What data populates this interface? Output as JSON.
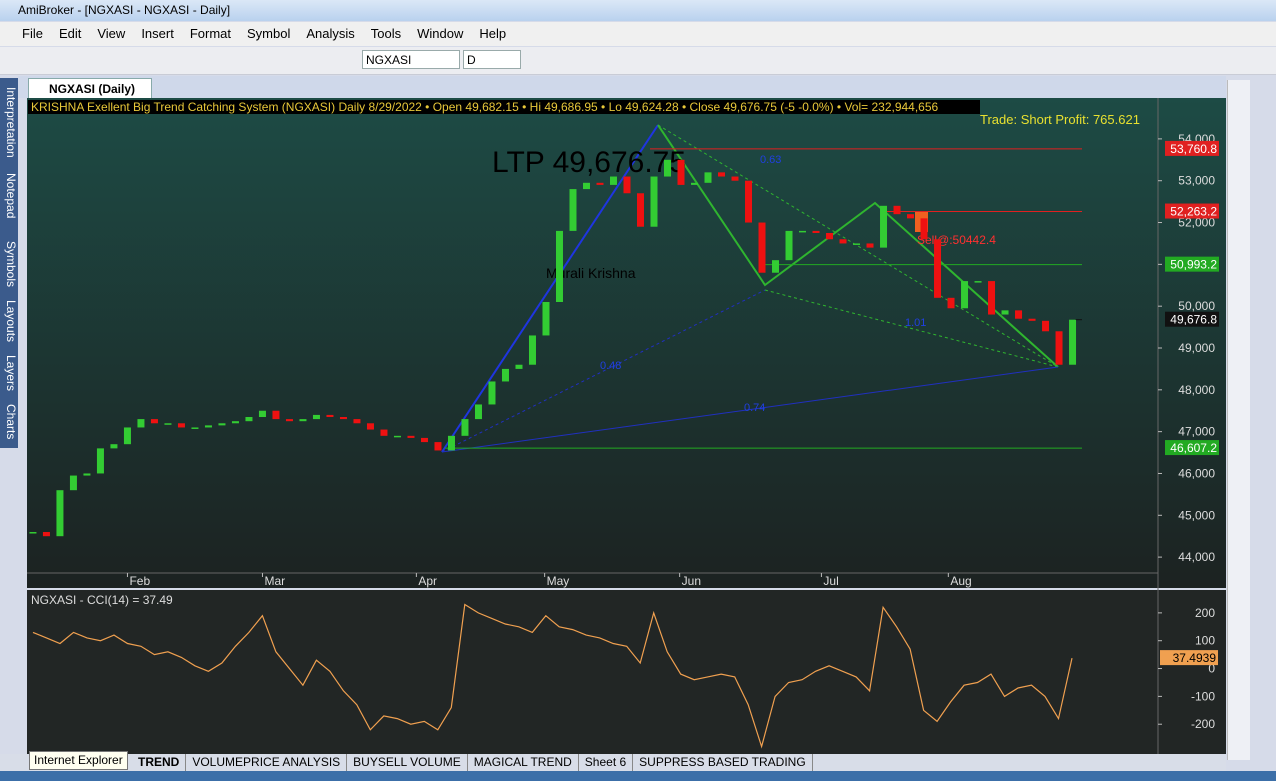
{
  "window": {
    "title": "AmiBroker - [NGXASI - NGXASI - Daily]",
    "menu": [
      "File",
      "Edit",
      "View",
      "Insert",
      "Format",
      "Symbol",
      "Analysis",
      "Tools",
      "Window",
      "Help"
    ]
  },
  "toolbar": {
    "symbol": "NGXASI",
    "interval": "D"
  },
  "side_tabs": [
    "Interpretation",
    "Notepad",
    "Symbols",
    "Layouts",
    "Layers",
    "Charts"
  ],
  "chart_tab": "NGXASI (Daily)",
  "sheets": [
    "TREND",
    "VOLUMEPRICE ANALYSIS",
    "BUYSELL VOLUME",
    "MAGICAL TREND",
    "Sheet 6",
    "SUPPRESS BASED TRADING"
  ],
  "tooltip": "Internet Explorer",
  "chart_data": [
    {
      "type": "candlestick",
      "title": "KRISHNA Exellent Big Trend Catching System (NGXASI) Daily  8/29/2022  •  Open 49,682.15  •  Hi 49,686.95  •  Lo 49,624.28  •  Close 49,676.75 (-5 -0.0%)  •  Vol= 232,944,656",
      "annotations": [
        "Trade: Short Profit:  765.621",
        "LTP 49,676.75",
        "Murali Krishna",
        "Sell@:50442.4",
        "0.63",
        "0.48",
        "0.74",
        "1.01"
      ],
      "x": [
        0,
        1,
        2,
        3,
        4,
        5,
        6,
        7,
        8,
        9,
        10,
        11,
        12,
        13,
        14,
        15,
        16,
        17,
        18,
        19,
        20,
        21,
        22,
        23,
        24,
        25,
        26,
        27,
        28,
        29,
        30,
        31,
        32,
        33,
        34,
        35,
        36,
        37,
        38,
        39,
        40,
        41,
        42,
        43,
        44,
        45,
        46,
        47,
        48,
        49,
        50,
        51,
        52,
        53,
        54,
        55,
        56,
        57,
        58,
        59,
        60,
        61,
        62,
        63,
        64,
        65,
        66,
        67,
        68,
        69,
        70,
        71,
        72,
        73,
        74,
        75,
        76,
        77
      ],
      "values": [
        44600,
        44500,
        45600,
        45950,
        46000,
        46600,
        46700,
        47100,
        47300,
        47200,
        47200,
        47100,
        47100,
        47150,
        47200,
        47250,
        47350,
        47500,
        47300,
        47250,
        47300,
        47400,
        47350,
        47300,
        47200,
        47050,
        46900,
        46900,
        46850,
        46750,
        46550,
        46900,
        47300,
        47650,
        48200,
        48500,
        48600,
        49300,
        50100,
        51800,
        52800,
        52950,
        52900,
        53100,
        52700,
        51900,
        53100,
        53500,
        52900,
        52950,
        53200,
        53100,
        53000,
        52000,
        50800,
        51100,
        51800,
        51800,
        51750,
        51600,
        51500,
        51500,
        51400,
        52400,
        52200,
        52100,
        51600,
        50200,
        49950,
        50600,
        50600,
        49800,
        49900,
        49700,
        49650,
        49400,
        48600,
        49676.75
      ],
      "up_color": "#33cc33",
      "down_color": "#ee1111",
      "levels": [
        {
          "value": 53760.8,
          "label": "53,760.8",
          "color": "#e02020"
        },
        {
          "value": 52263.2,
          "label": "52,263.2",
          "color": "#e02020"
        },
        {
          "value": 50993.2,
          "label": "50,993.2",
          "color": "#22aa22"
        },
        {
          "value": 49676.8,
          "label": "49,676.8",
          "color": "#111111"
        },
        {
          "value": 46607.2,
          "label": "46,607.2",
          "color": "#22aa22"
        }
      ],
      "xlim": [
        -0.44,
        83.33
      ],
      "xticks": [
        {
          "value": 7,
          "label": "Feb"
        },
        {
          "value": 17,
          "label": "Mar"
        },
        {
          "value": 28.4,
          "label": "Apr"
        },
        {
          "value": 37.9,
          "label": "May"
        },
        {
          "value": 47.9,
          "label": "Jun"
        },
        {
          "value": 58.4,
          "label": "Jul"
        },
        {
          "value": 67.8,
          "label": "Aug"
        }
      ],
      "ylim": [
        43620,
        54930
      ],
      "yticks": [
        {
          "value": 44000,
          "label": "44,000"
        },
        {
          "value": 45000,
          "label": "45,000"
        },
        {
          "value": 46000,
          "label": "46,000"
        },
        {
          "value": 47000,
          "label": "47,000"
        },
        {
          "value": 48000,
          "label": "48,000"
        },
        {
          "value": 49000,
          "label": "49,000"
        },
        {
          "value": 50000,
          "label": "50,000"
        },
        {
          "value": 51000,
          "label": "51,000"
        },
        {
          "value": 52000,
          "label": "52,000"
        },
        {
          "value": 53000,
          "label": "53,000"
        },
        {
          "value": 54000,
          "label": "54,000"
        }
      ]
    },
    {
      "type": "line",
      "title": "NGXASI - CCI(14) = 37.49",
      "color": "#f0a050",
      "values": [
        130,
        110,
        90,
        130,
        110,
        100,
        120,
        90,
        80,
        50,
        60,
        40,
        10,
        -10,
        20,
        80,
        130,
        190,
        60,
        0,
        -60,
        30,
        -10,
        -80,
        -130,
        -220,
        -170,
        -180,
        -200,
        -190,
        -220,
        -140,
        230,
        200,
        180,
        160,
        150,
        130,
        190,
        150,
        140,
        120,
        110,
        90,
        80,
        20,
        200,
        60,
        -20,
        -40,
        -30,
        -20,
        -30,
        -130,
        -280,
        -100,
        -50,
        -40,
        -10,
        10,
        -10,
        -30,
        -80,
        220,
        150,
        70,
        -150,
        -190,
        -120,
        -60,
        -50,
        -20,
        -100,
        -70,
        -60,
        -100,
        -180,
        37.4939
      ],
      "ylim": [
        -307,
        275
      ],
      "yticks": [
        200,
        100,
        0,
        -100,
        -200
      ]
    }
  ]
}
